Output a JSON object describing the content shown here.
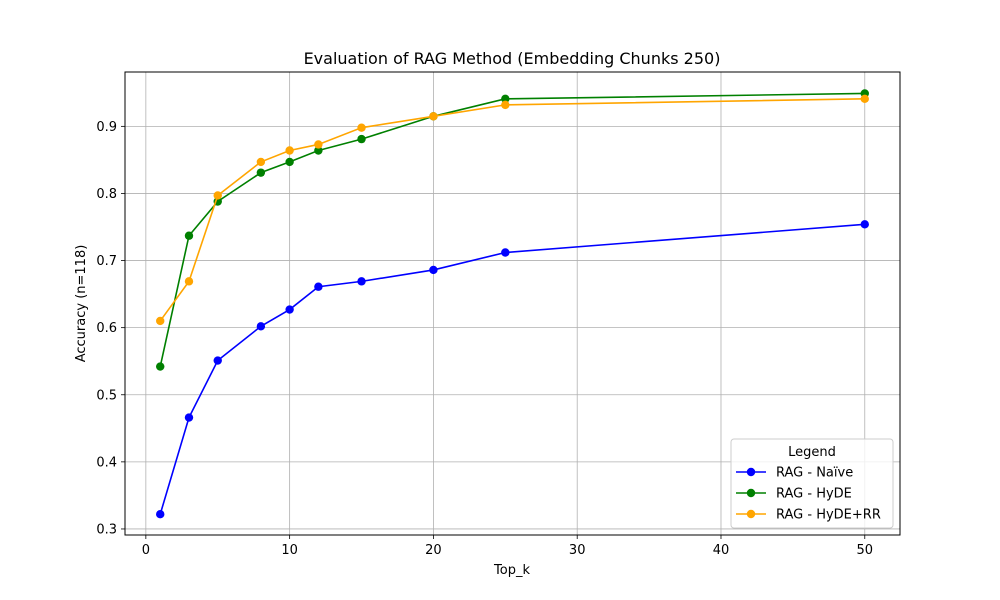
{
  "chart_data": {
    "type": "line",
    "title": "Evaluation of RAG Method (Embedding Chunks 250)",
    "xlabel": "Top_k",
    "ylabel": "Accuracy (n=118)",
    "x": [
      1,
      3,
      5,
      8,
      10,
      12,
      15,
      20,
      25,
      50
    ],
    "xlim": [
      -1.45,
      52.45
    ],
    "ylim": [
      0.291,
      0.981
    ],
    "xticks": [
      0,
      10,
      20,
      30,
      40,
      50
    ],
    "yticks": [
      0.3,
      0.4,
      0.5,
      0.6,
      0.7,
      0.8,
      0.9
    ],
    "grid": true,
    "legend": {
      "title": "Legend",
      "placement": "lower-right"
    },
    "series": [
      {
        "name": "RAG - Naïve",
        "color": "#0000ff",
        "values": [
          0.322,
          0.466,
          0.551,
          0.602,
          0.627,
          0.661,
          0.669,
          0.686,
          0.712,
          0.754
        ]
      },
      {
        "name": "RAG - HyDE",
        "color": "#008000",
        "values": [
          0.542,
          0.737,
          0.788,
          0.831,
          0.847,
          0.864,
          0.881,
          0.915,
          0.941,
          0.949
        ]
      },
      {
        "name": "RAG - HyDE+RR",
        "color": "#ffa500",
        "values": [
          0.61,
          0.669,
          0.797,
          0.847,
          0.864,
          0.873,
          0.898,
          0.915,
          0.932,
          0.941
        ]
      }
    ]
  }
}
